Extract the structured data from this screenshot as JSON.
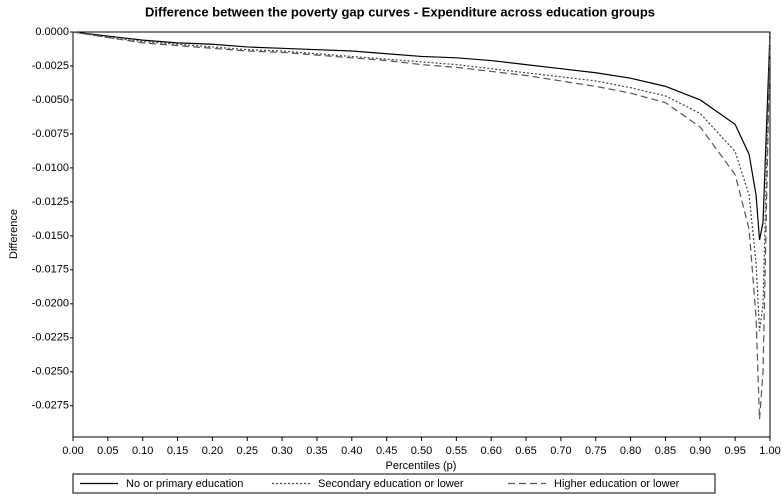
{
  "chart_data": {
    "type": "line",
    "title": "Difference between the poverty gap curves  - Expenditure across education groups",
    "x_label": "Percentiles (p)",
    "y_label": "Difference",
    "x": [
      0,
      0.05,
      0.1,
      0.15,
      0.2,
      0.25,
      0.3,
      0.35,
      0.4,
      0.45,
      0.5,
      0.55,
      0.6,
      0.65,
      0.7,
      0.75,
      0.8,
      0.85,
      0.9,
      0.95,
      0.97,
      0.98,
      0.985,
      0.99,
      1
    ],
    "series": [
      {
        "name": "No or primary education",
        "color": "#000000",
        "dash": "solid",
        "values": [
          0,
          -0.0003,
          -0.0006,
          -0.0008,
          -0.0009,
          -0.0011,
          -0.0012,
          -0.0013,
          -0.0014,
          -0.0016,
          -0.0018,
          -0.0019,
          -0.0021,
          -0.0024,
          -0.0027,
          -0.003,
          -0.0034,
          -0.004,
          -0.005,
          -0.0068,
          -0.009,
          -0.012,
          -0.0153,
          -0.014,
          0
        ]
      },
      {
        "name": "Secondary education or lower",
        "color": "#444444",
        "dash": "dotted",
        "values": [
          0,
          -0.0004,
          -0.0007,
          -0.0009,
          -0.0011,
          -0.0013,
          -0.0014,
          -0.0016,
          -0.0018,
          -0.002,
          -0.0022,
          -0.0024,
          -0.0027,
          -0.003,
          -0.0033,
          -0.0036,
          -0.0041,
          -0.0047,
          -0.006,
          -0.0088,
          -0.012,
          -0.017,
          -0.022,
          -0.02,
          0
        ]
      },
      {
        "name": "Higher education or lower",
        "color": "#555555",
        "dash": "dashed",
        "values": [
          0,
          -0.0004,
          -0.0008,
          -0.001,
          -0.0012,
          -0.0014,
          -0.0015,
          -0.0017,
          -0.0019,
          -0.0021,
          -0.0024,
          -0.0026,
          -0.0029,
          -0.0032,
          -0.0036,
          -0.004,
          -0.0045,
          -0.0052,
          -0.007,
          -0.0105,
          -0.0145,
          -0.021,
          -0.0285,
          -0.025,
          -0.0005
        ]
      }
    ],
    "xlim": [
      0,
      1
    ],
    "ylim": [
      -0.0298,
      0
    ],
    "xticks": [
      {
        "value": 0,
        "label": "0.00"
      },
      {
        "value": 0.05,
        "label": "0.05"
      },
      {
        "value": 0.1,
        "label": "0.10"
      },
      {
        "value": 0.15,
        "label": "0.15"
      },
      {
        "value": 0.2,
        "label": "0.20"
      },
      {
        "value": 0.25,
        "label": "0.25"
      },
      {
        "value": 0.3,
        "label": "0.30"
      },
      {
        "value": 0.35,
        "label": "0.35"
      },
      {
        "value": 0.4,
        "label": "0.40"
      },
      {
        "value": 0.45,
        "label": "0.45"
      },
      {
        "value": 0.5,
        "label": "0.50"
      },
      {
        "value": 0.55,
        "label": "0.55"
      },
      {
        "value": 0.6,
        "label": "0.60"
      },
      {
        "value": 0.65,
        "label": "0.65"
      },
      {
        "value": 0.7,
        "label": "0.70"
      },
      {
        "value": 0.75,
        "label": "0.75"
      },
      {
        "value": 0.8,
        "label": "0.80"
      },
      {
        "value": 0.85,
        "label": "0.85"
      },
      {
        "value": 0.9,
        "label": "0.90"
      },
      {
        "value": 0.95,
        "label": "0.95"
      },
      {
        "value": 1,
        "label": "1.00"
      }
    ],
    "yticks": [
      {
        "value": 0,
        "label": "0.0000"
      },
      {
        "value": -0.0025,
        "label": "-0.0025"
      },
      {
        "value": -0.005,
        "label": "-0.0050"
      },
      {
        "value": -0.0075,
        "label": "-0.0075"
      },
      {
        "value": -0.01,
        "label": "-0.0100"
      },
      {
        "value": -0.0125,
        "label": "-0.0125"
      },
      {
        "value": -0.015,
        "label": "-0.0150"
      },
      {
        "value": -0.0175,
        "label": "-0.0175"
      },
      {
        "value": -0.02,
        "label": "-0.0200"
      },
      {
        "value": -0.0225,
        "label": "-0.0225"
      },
      {
        "value": -0.025,
        "label": "-0.0250"
      },
      {
        "value": -0.0275,
        "label": "-0.0275"
      }
    ],
    "grid": false,
    "legend": "bottom"
  }
}
